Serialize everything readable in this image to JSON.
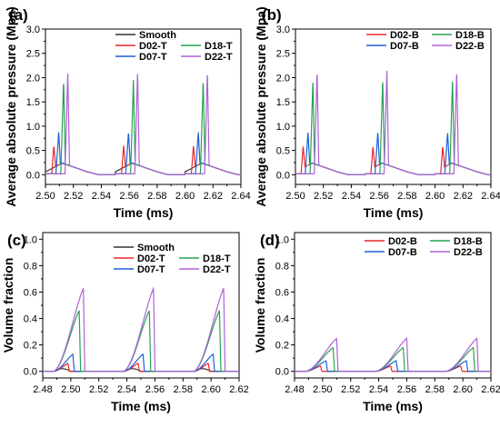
{
  "chart_data": [
    {
      "panel": "(a)",
      "type": "line",
      "xlabel": "Time (ms)",
      "ylabel": "Average absolute pressure (Mpa)",
      "xlim": [
        2.5,
        2.64
      ],
      "ylim": [
        -0.2,
        3.0
      ],
      "xticks": [
        "2.50",
        "2.52",
        "2.54",
        "2.56",
        "2.58",
        "2.60",
        "2.62",
        "2.64"
      ],
      "yticks": [
        "0.0",
        "0.5",
        "1.0",
        "1.5",
        "2.0",
        "2.5",
        "3.0"
      ],
      "legend": "top-right",
      "pulse_starts": [
        2.5,
        2.55,
        2.6
      ],
      "series": [
        {
          "name": "Smooth",
          "color": "#333333",
          "kind": "pressure",
          "peak": 0.0,
          "t_peak": 0.0,
          "base": 0.24,
          "t_rise": 0.0
        },
        {
          "name": "D02-T",
          "color": "#e8262b",
          "kind": "pressure",
          "peak": 0.6,
          "t_peak": 0.006,
          "base": 0.24,
          "t_rise": 0.0045
        },
        {
          "name": "D07-T",
          "color": "#1f5fd6",
          "kind": "pressure",
          "peak": 0.88,
          "t_peak": 0.0095,
          "base": 0.24,
          "t_rise": 0.0075
        },
        {
          "name": "D18-T",
          "color": "#27a352",
          "kind": "pressure",
          "peak": 1.95,
          "t_peak": 0.013,
          "base": 0.24,
          "t_rise": 0.011
        },
        {
          "name": "D22-T",
          "color": "#b060d8",
          "kind": "pressure",
          "peak": 2.12,
          "t_peak": 0.016,
          "base": 0.24,
          "t_rise": 0.014
        }
      ]
    },
    {
      "panel": "(b)",
      "type": "line",
      "xlabel": "Time (ms)",
      "ylabel": "Average absolute pressure (Mpa)",
      "xlim": [
        2.5,
        2.64
      ],
      "ylim": [
        -0.2,
        3.0
      ],
      "xticks": [
        "2.50",
        "2.52",
        "2.54",
        "2.56",
        "2.58",
        "2.60",
        "2.62",
        "2.64"
      ],
      "yticks": [
        "0.0",
        "0.5",
        "1.0",
        "1.5",
        "2.0",
        "2.5",
        "3.0"
      ],
      "legend": "top-right",
      "pulse_starts": [
        2.5,
        2.55,
        2.6
      ],
      "series": [
        {
          "name": "D02-B",
          "color": "#e8262b",
          "kind": "pressure",
          "peak": 0.58,
          "t_peak": 0.0055,
          "base": 0.24,
          "t_rise": 0.004
        },
        {
          "name": "D07-B",
          "color": "#1f5fd6",
          "kind": "pressure",
          "peak": 0.88,
          "t_peak": 0.009,
          "base": 0.24,
          "t_rise": 0.007
        },
        {
          "name": "D18-B",
          "color": "#27a352",
          "kind": "pressure",
          "peak": 1.95,
          "t_peak": 0.0125,
          "base": 0.24,
          "t_rise": 0.0105
        },
        {
          "name": "D22-B",
          "color": "#b060d8",
          "kind": "pressure",
          "peak": 2.15,
          "t_peak": 0.0155,
          "base": 0.24,
          "t_rise": 0.0135
        }
      ]
    },
    {
      "panel": "(c)",
      "type": "line",
      "xlabel": "Time (ms)",
      "ylabel": "Volume fraction",
      "xlim": [
        2.48,
        2.62
      ],
      "ylim": [
        -0.05,
        1.05
      ],
      "xticks": [
        "2.48",
        "2.50",
        "2.52",
        "2.54",
        "2.56",
        "2.58",
        "2.60",
        "2.62"
      ],
      "yticks": [
        "0.0",
        "0.2",
        "0.4",
        "0.6",
        "0.8",
        "1.0"
      ],
      "legend": "top-right",
      "pulse_starts": [
        2.488,
        2.538,
        2.588
      ],
      "series": [
        {
          "name": "Smooth",
          "color": "#333333",
          "kind": "volume",
          "peak": 0.0,
          "t_peak": 0.0,
          "t_end": 0.0
        },
        {
          "name": "D02-T",
          "color": "#e8262b",
          "kind": "volume",
          "peak": 0.06,
          "t_peak": 0.01,
          "t_end": 0.011
        },
        {
          "name": "D07-T",
          "color": "#1f5fd6",
          "kind": "volume",
          "peak": 0.13,
          "t_peak": 0.0135,
          "t_end": 0.0145
        },
        {
          "name": "D18-T",
          "color": "#27a352",
          "kind": "volume",
          "peak": 0.46,
          "t_peak": 0.018,
          "t_end": 0.019
        },
        {
          "name": "D22-T",
          "color": "#b060d8",
          "kind": "volume",
          "peak": 0.63,
          "t_peak": 0.021,
          "t_end": 0.022
        }
      ]
    },
    {
      "panel": "(d)",
      "type": "line",
      "xlabel": "Time (ms)",
      "ylabel": "Volume fraction",
      "xlim": [
        2.48,
        2.62
      ],
      "ylim": [
        -0.05,
        1.05
      ],
      "xticks": [
        "2.48",
        "2.50",
        "2.52",
        "2.54",
        "2.56",
        "2.58",
        "2.60",
        "2.62"
      ],
      "yticks": [
        "0.0",
        "0.2",
        "0.4",
        "0.6",
        "0.8",
        "1.0"
      ],
      "legend": "top-right",
      "pulse_starts": [
        2.488,
        2.538,
        2.588
      ],
      "series": [
        {
          "name": "D02-B",
          "color": "#e8262b",
          "kind": "volume",
          "peak": 0.04,
          "t_peak": 0.0105,
          "t_end": 0.0115
        },
        {
          "name": "D07-B",
          "color": "#1f5fd6",
          "kind": "volume",
          "peak": 0.08,
          "t_peak": 0.0145,
          "t_end": 0.0155
        },
        {
          "name": "D18-B",
          "color": "#27a352",
          "kind": "volume",
          "peak": 0.18,
          "t_peak": 0.0195,
          "t_end": 0.0205
        },
        {
          "name": "D22-B",
          "color": "#b060d8",
          "kind": "volume",
          "peak": 0.25,
          "t_peak": 0.022,
          "t_end": 0.023
        }
      ]
    }
  ]
}
